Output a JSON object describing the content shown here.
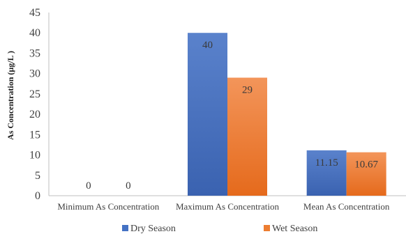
{
  "chart_data": {
    "type": "bar",
    "categories": [
      "Minimum As Concentration",
      "Maximum As Concentration",
      "Mean As Concentration"
    ],
    "series": [
      {
        "name": "Dry Season",
        "values": [
          0,
          40,
          11.15
        ],
        "labels": [
          "0",
          "40",
          "11.15"
        ],
        "color": "#4472C4"
      },
      {
        "name": "Wet Season",
        "values": [
          0,
          29,
          10.67
        ],
        "labels": [
          "0",
          "29",
          "10.67"
        ],
        "color": "#ED7D31"
      }
    ],
    "title": "",
    "xlabel": "",
    "ylabel": "As Concentration (µg/L )",
    "ylim": [
      0,
      45
    ],
    "yticks": [
      0,
      5,
      10,
      15,
      20,
      25,
      30,
      35,
      40,
      45
    ],
    "grid": false,
    "legend": "bottom"
  }
}
